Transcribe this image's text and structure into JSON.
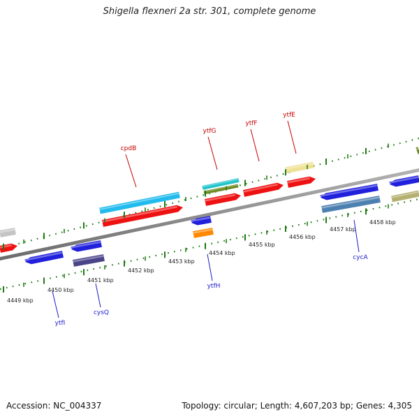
{
  "title": "Shigella flexneri 2a str. 301, complete genome",
  "footer": {
    "accession": "Accession: NC_004337",
    "summary": "Topology: circular; Length: 4,607,203 bp; Genes: 4,305"
  },
  "colors": {
    "backbone": "#8c8c8c",
    "ticks": "#1e7a12",
    "forward_label": "#c40000",
    "reverse_label": "#1a1acc"
  },
  "position_ticks": [
    {
      "label": "4449 kbp"
    },
    {
      "label": "4450 kbp"
    },
    {
      "label": "4451 kbp"
    },
    {
      "label": "4452 kbp"
    },
    {
      "label": "4453 kbp"
    },
    {
      "label": "4454 kbp"
    },
    {
      "label": "4455 kbp"
    },
    {
      "label": "4456 kbp"
    },
    {
      "label": "4457 kbp"
    },
    {
      "label": "4458 kbp"
    }
  ],
  "genes": [
    {
      "name": "cpdB",
      "strand": "forward"
    },
    {
      "name": "ytfG",
      "strand": "forward"
    },
    {
      "name": "ytfF",
      "strand": "forward"
    },
    {
      "name": "ytfE",
      "strand": "forward"
    },
    {
      "name": "ytfI",
      "strand": "reverse"
    },
    {
      "name": "cysQ",
      "strand": "reverse"
    },
    {
      "name": "ytfH",
      "strand": "reverse"
    },
    {
      "name": "cycA",
      "strand": "reverse"
    }
  ],
  "feature_colors": {
    "cds": "#ee1111",
    "gene": "#2020dd",
    "cog_cyan": "#22bbee",
    "cog_teal": "#22c4cc",
    "cog_olive": "#6b8a22",
    "cog_pale": "#efe296",
    "cog_navy": "#4a4488",
    "cog_orange": "#ff8800",
    "cog_steel": "#4c80b0",
    "cog_khaki": "#b4b070",
    "cog_grey": "#c4c4c4"
  }
}
